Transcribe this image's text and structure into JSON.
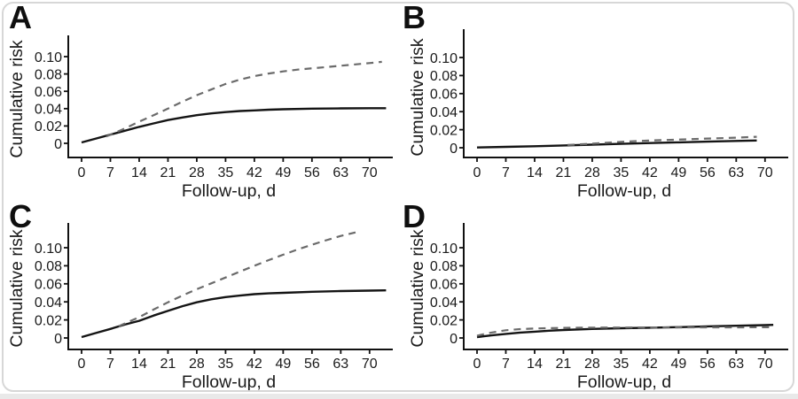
{
  "figure": {
    "background_color": "#ffffff",
    "border_color": "#d7d7d7",
    "bottom_strip_color": "#e9e9e9",
    "text_color": "#1a1a1a",
    "axis_color": "#111111",
    "solid_line_color": "#141414",
    "dashed_line_color": "#6b6b6b"
  },
  "chart_data": [
    {
      "panel": "A",
      "type": "line",
      "xlabel": "Follow-up, d",
      "ylabel": "Cumulative risk",
      "x_ticks": [
        0,
        7,
        14,
        21,
        28,
        35,
        42,
        49,
        56,
        63,
        70
      ],
      "y_ticks": [
        0,
        0.02,
        0.04,
        0.06,
        0.08,
        0.1
      ],
      "y_tick_labels": [
        "0",
        "0.02",
        "0.04",
        "0.06",
        "0.08",
        "0.10"
      ],
      "xlim": [
        0,
        75
      ],
      "ylim": [
        0,
        0.12
      ],
      "grid": false,
      "legend": "none",
      "series": [
        {
          "name": "solid",
          "line_style": "solid",
          "points": [
            [
              0,
              0.001
            ],
            [
              3.5,
              0.0055
            ],
            [
              7,
              0.01
            ],
            [
              10.5,
              0.0145
            ],
            [
              14,
              0.019
            ],
            [
              17.5,
              0.023
            ],
            [
              21,
              0.0268
            ],
            [
              24.5,
              0.0298
            ],
            [
              28,
              0.0325
            ],
            [
              31.5,
              0.0345
            ],
            [
              35,
              0.036
            ],
            [
              38.5,
              0.0372
            ],
            [
              42,
              0.038
            ],
            [
              45.5,
              0.0388
            ],
            [
              49,
              0.0393
            ],
            [
              56,
              0.04
            ],
            [
              63,
              0.0403
            ],
            [
              70,
              0.0405
            ],
            [
              74,
              0.0405
            ]
          ]
        },
        {
          "name": "dashed",
          "line_style": "dashed",
          "points": [
            [
              6,
              0.008
            ],
            [
              10,
              0.016
            ],
            [
              14,
              0.025
            ],
            [
              17.5,
              0.0325
            ],
            [
              21,
              0.04
            ],
            [
              24.5,
              0.048
            ],
            [
              28,
              0.0555
            ],
            [
              31.5,
              0.062
            ],
            [
              35,
              0.0685
            ],
            [
              38.5,
              0.0735
            ],
            [
              42,
              0.0775
            ],
            [
              45.5,
              0.0805
            ],
            [
              49,
              0.083
            ],
            [
              52.5,
              0.085
            ],
            [
              56,
              0.0865
            ],
            [
              59.5,
              0.088
            ],
            [
              63,
              0.0895
            ],
            [
              66.5,
              0.091
            ],
            [
              70,
              0.0925
            ],
            [
              73,
              0.094
            ]
          ]
        }
      ]
    },
    {
      "panel": "B",
      "type": "line",
      "xlabel": "Follow-up, d",
      "ylabel": "Cumulative risk",
      "x_ticks": [
        0,
        7,
        14,
        21,
        28,
        35,
        42,
        49,
        56,
        63,
        70
      ],
      "y_ticks": [
        0,
        0.02,
        0.04,
        0.06,
        0.08,
        0.1
      ],
      "y_tick_labels": [
        "0",
        "0.02",
        "0.04",
        "0.06",
        "0.08",
        "0.10"
      ],
      "xlim": [
        0,
        75
      ],
      "ylim": [
        0,
        0.12
      ],
      "grid": false,
      "legend": "none",
      "series": [
        {
          "name": "solid",
          "line_style": "solid",
          "points": [
            [
              0,
              0.0003
            ],
            [
              7,
              0.001
            ],
            [
              14,
              0.0017
            ],
            [
              21,
              0.0025
            ],
            [
              28,
              0.0034
            ],
            [
              35,
              0.0043
            ],
            [
              42,
              0.0052
            ],
            [
              49,
              0.006
            ],
            [
              56,
              0.0068
            ],
            [
              63,
              0.0075
            ],
            [
              68,
              0.008
            ]
          ]
        },
        {
          "name": "dashed",
          "line_style": "dashed",
          "points": [
            [
              22,
              0.003
            ],
            [
              28,
              0.0045
            ],
            [
              35,
              0.0066
            ],
            [
              42,
              0.008
            ],
            [
              49,
              0.009
            ],
            [
              56,
              0.0102
            ],
            [
              63,
              0.0112
            ],
            [
              68,
              0.0122
            ]
          ]
        }
      ]
    },
    {
      "panel": "C",
      "type": "line",
      "xlabel": "Follow-up, d",
      "ylabel": "Cumulative risk",
      "x_ticks": [
        0,
        7,
        14,
        21,
        28,
        35,
        42,
        49,
        56,
        63,
        70
      ],
      "y_ticks": [
        0,
        0.02,
        0.04,
        0.06,
        0.08,
        0.1
      ],
      "y_tick_labels": [
        "0",
        "0.02",
        "0.04",
        "0.06",
        "0.08",
        "0.10"
      ],
      "xlim": [
        0,
        75
      ],
      "ylim": [
        0,
        0.125
      ],
      "grid": false,
      "legend": "none",
      "series": [
        {
          "name": "solid",
          "line_style": "solid",
          "points": [
            [
              0,
              0.001
            ],
            [
              3.5,
              0.0055
            ],
            [
              7,
              0.01
            ],
            [
              10.5,
              0.0148
            ],
            [
              14,
              0.019
            ],
            [
              17.5,
              0.0248
            ],
            [
              21,
              0.03
            ],
            [
              24.5,
              0.0352
            ],
            [
              28,
              0.0395
            ],
            [
              31.5,
              0.0428
            ],
            [
              35,
              0.0453
            ],
            [
              38.5,
              0.047
            ],
            [
              42,
              0.0485
            ],
            [
              45.5,
              0.0494
            ],
            [
              49,
              0.05
            ],
            [
              56,
              0.0512
            ],
            [
              63,
              0.052
            ],
            [
              70,
              0.0525
            ],
            [
              74,
              0.0527
            ]
          ]
        },
        {
          "name": "dashed",
          "line_style": "dashed",
          "points": [
            [
              9,
              0.013
            ],
            [
              14,
              0.023
            ],
            [
              17.5,
              0.0315
            ],
            [
              21,
              0.0395
            ],
            [
              24.5,
              0.047
            ],
            [
              28,
              0.054
            ],
            [
              31.5,
              0.0605
            ],
            [
              35,
              0.067
            ],
            [
              38.5,
              0.0735
            ],
            [
              42,
              0.08
            ],
            [
              45.5,
              0.0863
            ],
            [
              49,
              0.0923
            ],
            [
              52.5,
              0.098
            ],
            [
              56,
              0.1033
            ],
            [
              59.5,
              0.1083
            ],
            [
              63,
              0.113
            ],
            [
              67,
              0.1175
            ]
          ]
        }
      ]
    },
    {
      "panel": "D",
      "type": "line",
      "xlabel": "Follow-up, d",
      "ylabel": "Cumulative risk",
      "x_ticks": [
        0,
        7,
        14,
        21,
        28,
        35,
        42,
        49,
        56,
        63,
        70
      ],
      "y_ticks": [
        0,
        0.02,
        0.04,
        0.06,
        0.08,
        0.1
      ],
      "y_tick_labels": [
        "0",
        "0.02",
        "0.04",
        "0.06",
        "0.08",
        "0.10"
      ],
      "xlim": [
        0,
        75
      ],
      "ylim": [
        0,
        0.125
      ],
      "grid": false,
      "legend": "none",
      "series": [
        {
          "name": "solid",
          "line_style": "solid",
          "points": [
            [
              0,
              0.001
            ],
            [
              3.5,
              0.0028
            ],
            [
              7,
              0.0045
            ],
            [
              10.5,
              0.006
            ],
            [
              14,
              0.007
            ],
            [
              17.5,
              0.008
            ],
            [
              21,
              0.0088
            ],
            [
              28,
              0.01
            ],
            [
              35,
              0.0108
            ],
            [
              42,
              0.0114
            ],
            [
              49,
              0.012
            ],
            [
              56,
              0.0128
            ],
            [
              63,
              0.0135
            ],
            [
              70,
              0.0142
            ],
            [
              72,
              0.0145
            ]
          ]
        },
        {
          "name": "dashed",
          "line_style": "dashed",
          "points": [
            [
              0,
              0.0025
            ],
            [
              3.5,
              0.006
            ],
            [
              7,
              0.0085
            ],
            [
              10.5,
              0.0098
            ],
            [
              14,
              0.0105
            ],
            [
              21,
              0.0112
            ],
            [
              28,
              0.0115
            ],
            [
              35,
              0.0116
            ],
            [
              42,
              0.0117
            ],
            [
              49,
              0.0117
            ],
            [
              56,
              0.0118
            ],
            [
              63,
              0.0118
            ],
            [
              70,
              0.0119
            ],
            [
              72,
              0.012
            ]
          ]
        }
      ]
    }
  ]
}
